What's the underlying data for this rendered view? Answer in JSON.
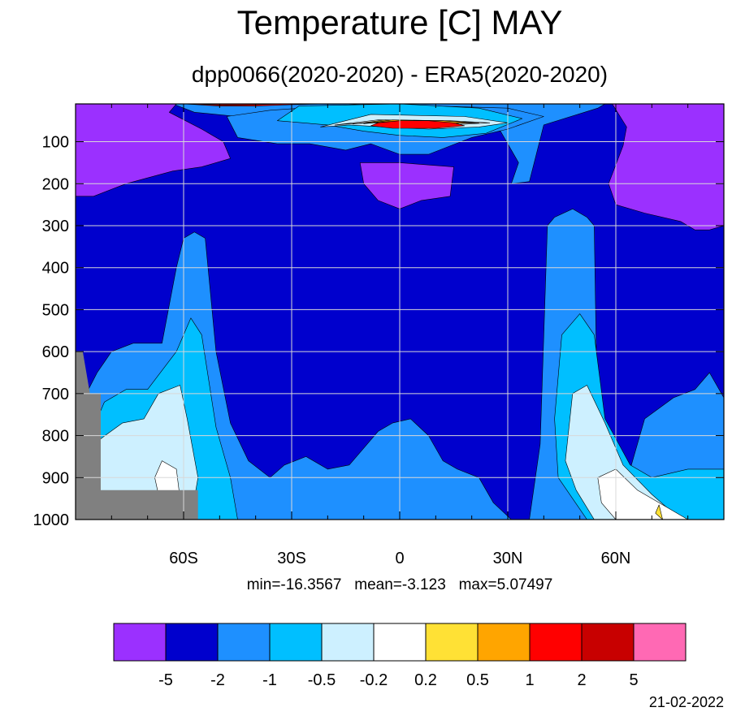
{
  "chart_data": {
    "type": "heatmap",
    "title": "Temperature [C] MAY",
    "subtitle": "dpp0066(2020-2020) - ERA5(2020-2020)",
    "xlabel": "",
    "ylabel": "",
    "x_axis": {
      "range": [
        -90,
        90
      ],
      "ticks": [
        {
          "value": -60,
          "label": "60S"
        },
        {
          "value": -30,
          "label": "30S"
        },
        {
          "value": 0,
          "label": "0"
        },
        {
          "value": 30,
          "label": "30N"
        },
        {
          "value": 60,
          "label": "60N"
        }
      ],
      "minor_tick_step": 10
    },
    "y_axis": {
      "range": [
        10,
        1000
      ],
      "reversed": true,
      "ticks": [
        100,
        200,
        300,
        400,
        500,
        600,
        700,
        800,
        900,
        1000
      ]
    },
    "grid": true,
    "colorbar": {
      "placement": "bottom",
      "colors": [
        "#9b30ff",
        "#0000cd",
        "#1e90ff",
        "#00bfff",
        "#cdf0ff",
        "#ffffff",
        "#ffe135",
        "#ffa500",
        "#ff0000",
        "#c80000",
        "#ff69b4"
      ],
      "levels": [
        "-5",
        "-2",
        "-1",
        "-0.5",
        "-0.2",
        "0.2",
        "0.5",
        "1",
        "2",
        "5"
      ]
    },
    "fields": [
      {
        "level": "#0000cd",
        "region": "background",
        "points": []
      },
      {
        "level": "#1e90ff",
        "region": "southern-hemisphere-column",
        "points": [
          [
            -90,
            1000
          ],
          [
            -90,
            760
          ],
          [
            -87,
            700
          ],
          [
            -84,
            650
          ],
          [
            -80,
            600
          ],
          [
            -74,
            580
          ],
          [
            -66,
            580
          ],
          [
            -62,
            400
          ],
          [
            -60,
            330
          ],
          [
            -57,
            315
          ],
          [
            -54,
            330
          ],
          [
            -51,
            600
          ],
          [
            -47,
            770
          ],
          [
            -42,
            860
          ],
          [
            -36,
            900
          ],
          [
            -32,
            870
          ],
          [
            -26,
            850
          ],
          [
            -20,
            880
          ],
          [
            -14,
            870
          ],
          [
            -10,
            830
          ],
          [
            -6,
            790
          ],
          [
            -2,
            770
          ],
          [
            3,
            760
          ],
          [
            8,
            800
          ],
          [
            12,
            860
          ],
          [
            16,
            880
          ],
          [
            22,
            900
          ],
          [
            26,
            960
          ],
          [
            31,
            1000
          ]
        ]
      },
      {
        "level": "#1e90ff",
        "region": "northern-hemisphere-column",
        "points": [
          [
            36,
            1000
          ],
          [
            39,
            820
          ],
          [
            41,
            300
          ],
          [
            43,
            280
          ],
          [
            48,
            260
          ],
          [
            52,
            280
          ],
          [
            54,
            300
          ],
          [
            55,
            820
          ],
          [
            60,
            980
          ],
          [
            64,
            880
          ],
          [
            68,
            760
          ],
          [
            76,
            710
          ],
          [
            82,
            690
          ],
          [
            86,
            650
          ],
          [
            90,
            710
          ],
          [
            90,
            1000
          ]
        ]
      },
      {
        "level": "#1e90ff",
        "region": "tropopause-band",
        "points": [
          [
            -63,
            10
          ],
          [
            -57,
            30
          ],
          [
            -45,
            40
          ],
          [
            -30,
            50
          ],
          [
            -18,
            60
          ],
          [
            -6,
            105
          ],
          [
            6,
            105
          ],
          [
            18,
            85
          ],
          [
            28,
            75
          ],
          [
            33,
            150
          ],
          [
            31,
            200
          ],
          [
            36,
            195
          ],
          [
            40,
            60
          ],
          [
            55,
            20
          ],
          [
            57,
            10
          ]
        ]
      },
      {
        "level": "#1e90ff",
        "region": "equatorial-upper-band",
        "points": [
          [
            -45,
            90
          ],
          [
            -34,
            105
          ],
          [
            -25,
            105
          ],
          [
            -15,
            120
          ],
          [
            -8,
            105
          ],
          [
            0,
            130
          ],
          [
            8,
            130
          ],
          [
            20,
            90
          ],
          [
            30,
            70
          ],
          [
            40,
            40
          ],
          [
            30,
            20
          ],
          [
            -10,
            10
          ],
          [
            -36,
            25
          ],
          [
            -48,
            40
          ]
        ]
      },
      {
        "level": "#00bfff",
        "region": "southern-core",
        "points": [
          [
            -85,
            1000
          ],
          [
            -86,
            800
          ],
          [
            -82,
            720
          ],
          [
            -76,
            690
          ],
          [
            -70,
            690
          ],
          [
            -62,
            600
          ],
          [
            -58,
            520
          ],
          [
            -55,
            560
          ],
          [
            -51,
            780
          ],
          [
            -47,
            900
          ],
          [
            -45,
            1000
          ]
        ]
      },
      {
        "level": "#00bfff",
        "region": "northern-core",
        "points": [
          [
            52,
            1000
          ],
          [
            44,
            900
          ],
          [
            43,
            760
          ],
          [
            45,
            560
          ],
          [
            50,
            510
          ],
          [
            54,
            560
          ],
          [
            57,
            760
          ],
          [
            64,
            870
          ],
          [
            70,
            900
          ],
          [
            80,
            880
          ],
          [
            90,
            880
          ],
          [
            90,
            1000
          ]
        ]
      },
      {
        "level": "#00bfff",
        "region": "upper-tropical-core",
        "points": [
          [
            -34,
            50
          ],
          [
            -20,
            60
          ],
          [
            -10,
            75
          ],
          [
            0,
            85
          ],
          [
            12,
            90
          ],
          [
            24,
            80
          ],
          [
            34,
            45
          ],
          [
            22,
            20
          ],
          [
            0,
            10
          ],
          [
            -28,
            15
          ]
        ]
      },
      {
        "level": "#cdf0ff",
        "region": "southern-inner",
        "points": [
          [
            -84,
            1000
          ],
          [
            -85,
            820
          ],
          [
            -77,
            770
          ],
          [
            -71,
            760
          ],
          [
            -67,
            700
          ],
          [
            -61,
            680
          ],
          [
            -59,
            760
          ],
          [
            -56,
            900
          ],
          [
            -58,
            1000
          ]
        ]
      },
      {
        "level": "#cdf0ff",
        "region": "northern-inner",
        "points": [
          [
            54,
            1000
          ],
          [
            49,
            930
          ],
          [
            46,
            860
          ],
          [
            48,
            700
          ],
          [
            52,
            680
          ],
          [
            57,
            770
          ],
          [
            62,
            870
          ],
          [
            70,
            940
          ],
          [
            78,
            1000
          ]
        ]
      },
      {
        "level": "#cdf0ff",
        "region": "upper-tropical-inner",
        "points": [
          [
            -22,
            65
          ],
          [
            -14,
            60
          ],
          [
            -4,
            65
          ],
          [
            8,
            70
          ],
          [
            22,
            65
          ],
          [
            30,
            55
          ],
          [
            18,
            40
          ],
          [
            -8,
            35
          ]
        ]
      },
      {
        "level": "#ffffff",
        "region": "southern-spot",
        "points": [
          [
            -68,
            900
          ],
          [
            -66,
            860
          ],
          [
            -62,
            880
          ],
          [
            -61,
            950
          ],
          [
            -64,
            960
          ],
          [
            -67,
            940
          ]
        ]
      },
      {
        "level": "#ffffff",
        "region": "northern-spot",
        "points": [
          [
            60,
            1000
          ],
          [
            56,
            960
          ],
          [
            55,
            900
          ],
          [
            60,
            880
          ],
          [
            66,
            930
          ],
          [
            72,
            960
          ],
          [
            80,
            1000
          ]
        ]
      },
      {
        "level": "#ffffff",
        "region": "upper-tropical-spot",
        "points": [
          [
            -18,
            60
          ],
          [
            -10,
            55
          ],
          [
            0,
            55
          ],
          [
            14,
            60
          ],
          [
            25,
            55
          ],
          [
            14,
            50
          ],
          [
            -6,
            48
          ]
        ]
      },
      {
        "level": "#ffe135",
        "region": "upper-tropical-yellow",
        "points": [
          [
            -13,
            58
          ],
          [
            -5,
            52
          ],
          [
            4,
            52
          ],
          [
            14,
            57
          ],
          [
            22,
            55
          ],
          [
            12,
            51
          ],
          [
            -4,
            48
          ]
        ]
      },
      {
        "level": "#ffe135",
        "region": "northern-spot-yellow",
        "points": [
          [
            71,
            985
          ],
          [
            72,
            965
          ],
          [
            73,
            1000
          ]
        ]
      },
      {
        "level": "#ffa500",
        "region": "upper-tropical-orange",
        "points": [
          [
            -10,
            57
          ],
          [
            -3,
            52
          ],
          [
            6,
            52
          ],
          [
            14,
            56
          ],
          [
            20,
            55
          ],
          [
            12,
            50
          ],
          [
            -2,
            48
          ]
        ]
      },
      {
        "level": "#ff0000",
        "region": "upper-tropical-max",
        "points": [
          [
            -8,
            62
          ],
          [
            -6,
            55
          ],
          [
            0,
            50
          ],
          [
            8,
            50
          ],
          [
            15,
            55
          ],
          [
            18,
            62
          ],
          [
            10,
            68
          ],
          [
            -2,
            68
          ]
        ]
      },
      {
        "level": "#ff0000",
        "region": "stratosphere-streak",
        "points": [
          [
            -60,
            10
          ],
          [
            -50,
            15
          ],
          [
            -40,
            15
          ],
          [
            -30,
            12
          ],
          [
            -20,
            10
          ]
        ]
      },
      {
        "level": "#c80000",
        "region": "stratosphere-streak-core",
        "points": [
          [
            -58,
            10
          ],
          [
            -48,
            13
          ],
          [
            -40,
            12
          ],
          [
            -32,
            10
          ]
        ]
      },
      {
        "level": "#9b30ff",
        "region": "southern-upper-cold",
        "points": [
          [
            -90,
            10
          ],
          [
            -90,
            230
          ],
          [
            -85,
            230
          ],
          [
            -76,
            200
          ],
          [
            -63,
            170
          ],
          [
            -55,
            160
          ],
          [
            -47,
            140
          ],
          [
            -49,
            100
          ],
          [
            -55,
            70
          ],
          [
            -64,
            30
          ],
          [
            -62,
            10
          ]
        ]
      },
      {
        "level": "#9b30ff",
        "region": "northern-upper-cold",
        "points": [
          [
            59,
            10
          ],
          [
            63,
            65
          ],
          [
            62,
            110
          ],
          [
            58,
            200
          ],
          [
            60,
            250
          ],
          [
            68,
            270
          ],
          [
            78,
            290
          ],
          [
            82,
            310
          ],
          [
            86,
            310
          ],
          [
            90,
            300
          ],
          [
            90,
            10
          ]
        ]
      },
      {
        "level": "#9b30ff",
        "region": "equatorial-upper-cold",
        "points": [
          [
            -11,
            150
          ],
          [
            -10,
            200
          ],
          [
            -6,
            240
          ],
          [
            0,
            260
          ],
          [
            6,
            240
          ],
          [
            14,
            230
          ],
          [
            15,
            160
          ],
          [
            0,
            150
          ]
        ]
      }
    ],
    "missing_mask": [
      [
        -90,
        600
      ],
      [
        -88,
        600
      ],
      [
        -86,
        700
      ],
      [
        -83,
        700
      ],
      [
        -83,
        930
      ],
      [
        -56,
        930
      ],
      [
        -56,
        1000
      ],
      [
        -90,
        1000
      ]
    ]
  },
  "stats": {
    "min": "min=-16.3567",
    "mean": "mean=-3.123",
    "max": "max=5.07497"
  },
  "date": "21-02-2022"
}
